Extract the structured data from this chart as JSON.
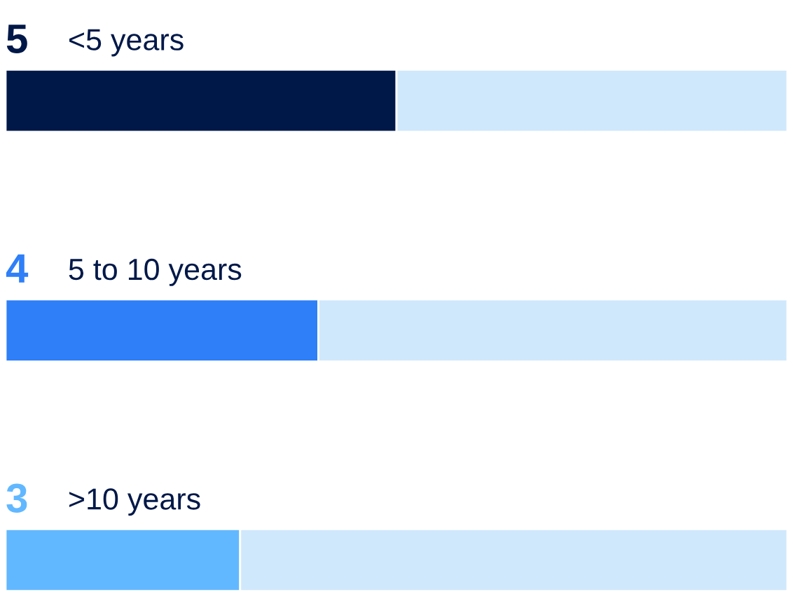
{
  "chart_data": {
    "type": "bar",
    "orientation": "horizontal",
    "stacked": true,
    "categories": [
      "<5 years",
      "5 to 10 years",
      ">10 years"
    ],
    "xlim": [
      0,
      10
    ],
    "legend": false,
    "series": [
      {
        "colors": [
          "#001848",
          "#2e7ff8",
          "#62b8ff"
        ],
        "values": [
          5,
          4,
          3
        ],
        "value_labels": [
          "5",
          "4",
          "3"
        ]
      },
      {
        "color": "#d0e8fc",
        "values": [
          5,
          6,
          7
        ]
      }
    ]
  }
}
